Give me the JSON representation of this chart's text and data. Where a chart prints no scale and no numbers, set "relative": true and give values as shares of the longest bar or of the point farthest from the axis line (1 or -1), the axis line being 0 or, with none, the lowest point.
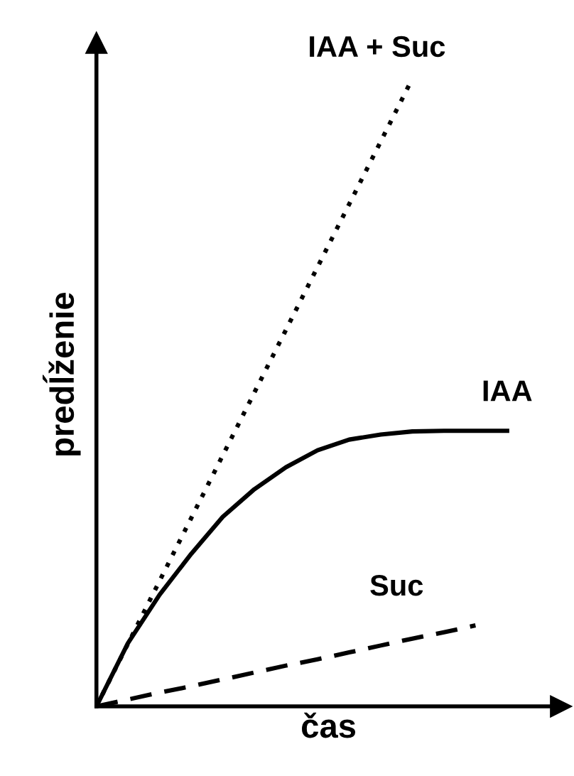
{
  "chart_data": {
    "type": "line",
    "relative": true,
    "xlabel": "čas",
    "ylabel": "predĺženie",
    "legend": false,
    "categories": [
      null,
      null,
      null,
      null,
      null,
      null,
      null,
      null,
      null,
      null,
      null,
      null,
      null,
      null
    ],
    "series": [
      {
        "name": "IAA + Suc",
        "color": "#000000",
        "line_style": "dotted",
        "values": [
          0,
          0.1,
          0.2,
          0.3,
          0.4,
          0.5,
          0.6,
          0.7,
          0.8,
          0.9,
          1,
          null,
          null,
          null
        ]
      },
      {
        "name": "IAA",
        "color": "#000000",
        "line_style": "solid",
        "values": [
          0,
          0.101,
          0.178,
          0.243,
          0.302,
          0.346,
          0.381,
          0.408,
          0.425,
          0.433,
          0.438,
          0.439,
          0.439,
          0.439
        ]
      },
      {
        "name": "Suc",
        "color": "#000000",
        "line_style": "dashed",
        "values": [
          0,
          0.011,
          0.022,
          0.032,
          0.043,
          0.054,
          0.065,
          0.075,
          0.086,
          0.097,
          0.108,
          0.118,
          0.129,
          null
        ]
      }
    ]
  }
}
